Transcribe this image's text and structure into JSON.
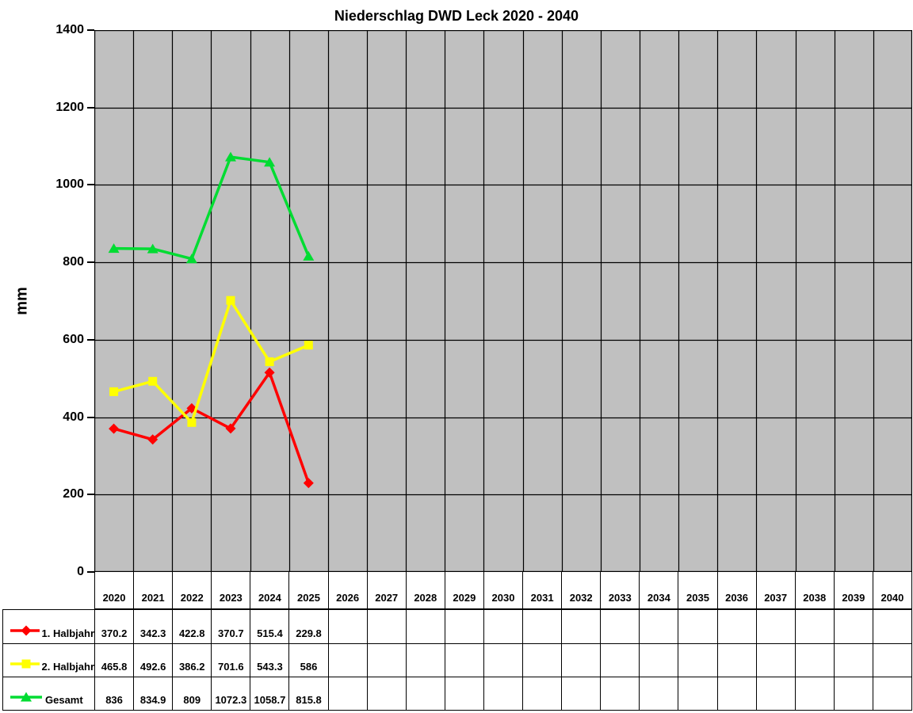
{
  "chart_data": {
    "type": "line",
    "title": "Niederschlag DWD Leck 2020 - 2040",
    "ylabel": "mm",
    "ylim": [
      0,
      1400
    ],
    "yticks": [
      0,
      200,
      400,
      600,
      800,
      1000,
      1200,
      1400
    ],
    "categories": [
      "2020",
      "2021",
      "2022",
      "2023",
      "2024",
      "2025",
      "2026",
      "2027",
      "2028",
      "2029",
      "2030",
      "2031",
      "2032",
      "2033",
      "2034",
      "2035",
      "2036",
      "2037",
      "2038",
      "2039",
      "2040"
    ],
    "grid": "both",
    "legend_position": "table-left",
    "colors": {
      "plot_bg": "#C0C0C0",
      "grid": "#000000",
      "axis": "#000000",
      "text": "#000000",
      "table_bg": "#FFFFFF"
    },
    "series": [
      {
        "name": "1. Halbjahr",
        "color": "#FF0000",
        "marker": "diamond",
        "values": [
          370.2,
          342.3,
          422.8,
          370.7,
          515.4,
          229.8
        ]
      },
      {
        "name": "2. Halbjahr",
        "color": "#FFFF00",
        "marker": "square",
        "values": [
          465.8,
          492.6,
          386.2,
          701.6,
          543.3,
          586
        ]
      },
      {
        "name": "Gesamt",
        "color": "#00DC32",
        "marker": "triangle",
        "values": [
          836,
          834.9,
          809,
          1072.3,
          1058.7,
          815.8
        ]
      }
    ]
  }
}
